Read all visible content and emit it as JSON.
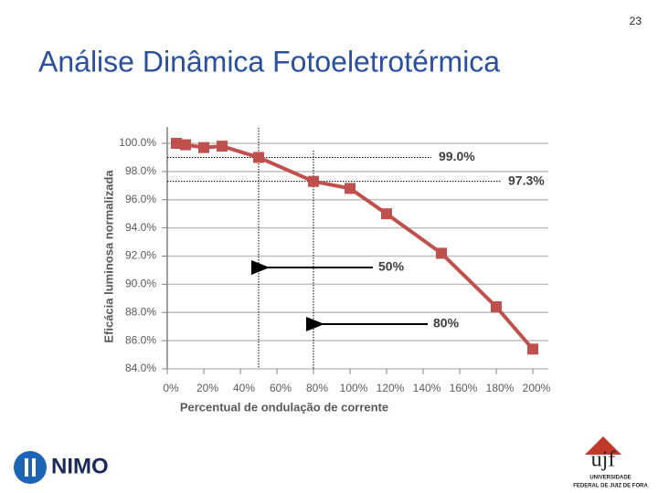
{
  "slide": {
    "number": "23",
    "title": "Análise Dinâmica Fotoeletrotérmica"
  },
  "logos": {
    "left": "NIMO",
    "right": "ujf",
    "right_line1": "UNIVERSIDADE",
    "right_line2": "FEDERAL DE JUIZ DE FORA"
  },
  "chart_data": {
    "type": "line",
    "x_label": "Percentual de ondulação de corrente",
    "y_label": "Eficácia luminosa normalizada",
    "x": [
      5,
      10,
      20,
      30,
      50,
      80,
      100,
      120,
      150,
      180,
      200
    ],
    "series": [
      {
        "name": "Eficácia",
        "color": "#c0504d",
        "values": [
          100.0,
          99.9,
          99.7,
          99.8,
          99.0,
          97.3,
          96.8,
          95.0,
          92.2,
          88.4,
          85.4
        ]
      }
    ],
    "xlim": [
      0,
      200
    ],
    "xticks": [
      {
        "value": 0,
        "label": "0%"
      },
      {
        "value": 20,
        "label": "20%"
      },
      {
        "value": 40,
        "label": "40%"
      },
      {
        "value": 60,
        "label": "60%"
      },
      {
        "value": 80,
        "label": "80%"
      },
      {
        "value": 100,
        "label": "100%"
      },
      {
        "value": 120,
        "label": "120%"
      },
      {
        "value": 140,
        "label": "140%"
      },
      {
        "value": 160,
        "label": "160%"
      },
      {
        "value": 180,
        "label": "180%"
      },
      {
        "value": 200,
        "label": "200%"
      }
    ],
    "ylim": [
      84,
      100
    ],
    "yticks": [
      {
        "value": 84,
        "label": "84.0%"
      },
      {
        "value": 86,
        "label": "86.0%"
      },
      {
        "value": 88,
        "label": "88.0%"
      },
      {
        "value": 90,
        "label": "90.0%"
      },
      {
        "value": 92,
        "label": "92.0%"
      },
      {
        "value": 94,
        "label": "94.0%"
      },
      {
        "value": 96,
        "label": "96.0%"
      },
      {
        "value": 98,
        "label": "98.0%"
      },
      {
        "value": 100,
        "label": "100.0%"
      }
    ],
    "grid": true,
    "hlines": [
      {
        "value": 99.0,
        "label": "99.0%"
      },
      {
        "value": 97.3,
        "label": "97.3%"
      }
    ],
    "vlines": [
      {
        "value": 50,
        "label": "50%"
      },
      {
        "value": 80,
        "label": "80%"
      }
    ]
  }
}
